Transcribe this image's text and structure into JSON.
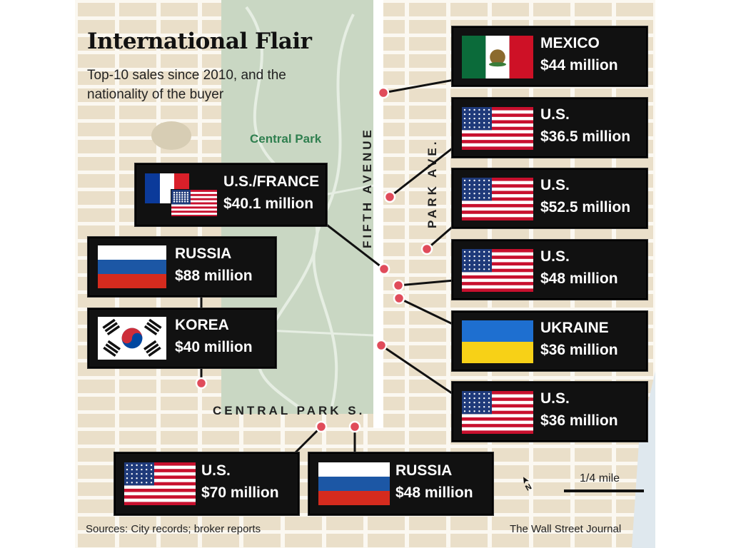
{
  "header": {
    "title": "International Flair",
    "subtitle": "Top-10 sales since 2010, and the nationality of the buyer"
  },
  "map": {
    "park_label": "Central Park",
    "streets": {
      "fifth": "FIFTH AVENUE",
      "park": "PARK AVE.",
      "south": "CENTRAL PARK S."
    },
    "scale_label": "1/4 mile",
    "north_label": "N"
  },
  "sales": [
    {
      "country": "MEXICO",
      "price": "$44 million",
      "flag": "mexico"
    },
    {
      "country": "U.S.",
      "price": "$36.5 million",
      "flag": "us"
    },
    {
      "country": "U.S.",
      "price": "$52.5 million",
      "flag": "us"
    },
    {
      "country": "U.S.",
      "price": "$48 million",
      "flag": "us"
    },
    {
      "country": "UKRAINE",
      "price": "$36 million",
      "flag": "ukraine"
    },
    {
      "country": "U.S.",
      "price": "$36 million",
      "flag": "us"
    },
    {
      "country": "U.S./FRANCE",
      "price": "$40.1 million",
      "flag": "france-us"
    },
    {
      "country": "RUSSIA",
      "price": "$88 million",
      "flag": "russia"
    },
    {
      "country": "KOREA",
      "price": "$40 million",
      "flag": "korea"
    },
    {
      "country": "U.S.",
      "price": "$70 million",
      "flag": "us"
    },
    {
      "country": "RUSSIA",
      "price": "$48 million",
      "flag": "russia"
    }
  ],
  "footer": {
    "sources": "Sources: City records; broker reports",
    "credit": "The Wall Street Journal"
  },
  "colors": {
    "park": "#c9d7c3",
    "blocks": "#eadfc9",
    "streets": "#fbf8f1",
    "marker": "#e04b5a"
  }
}
